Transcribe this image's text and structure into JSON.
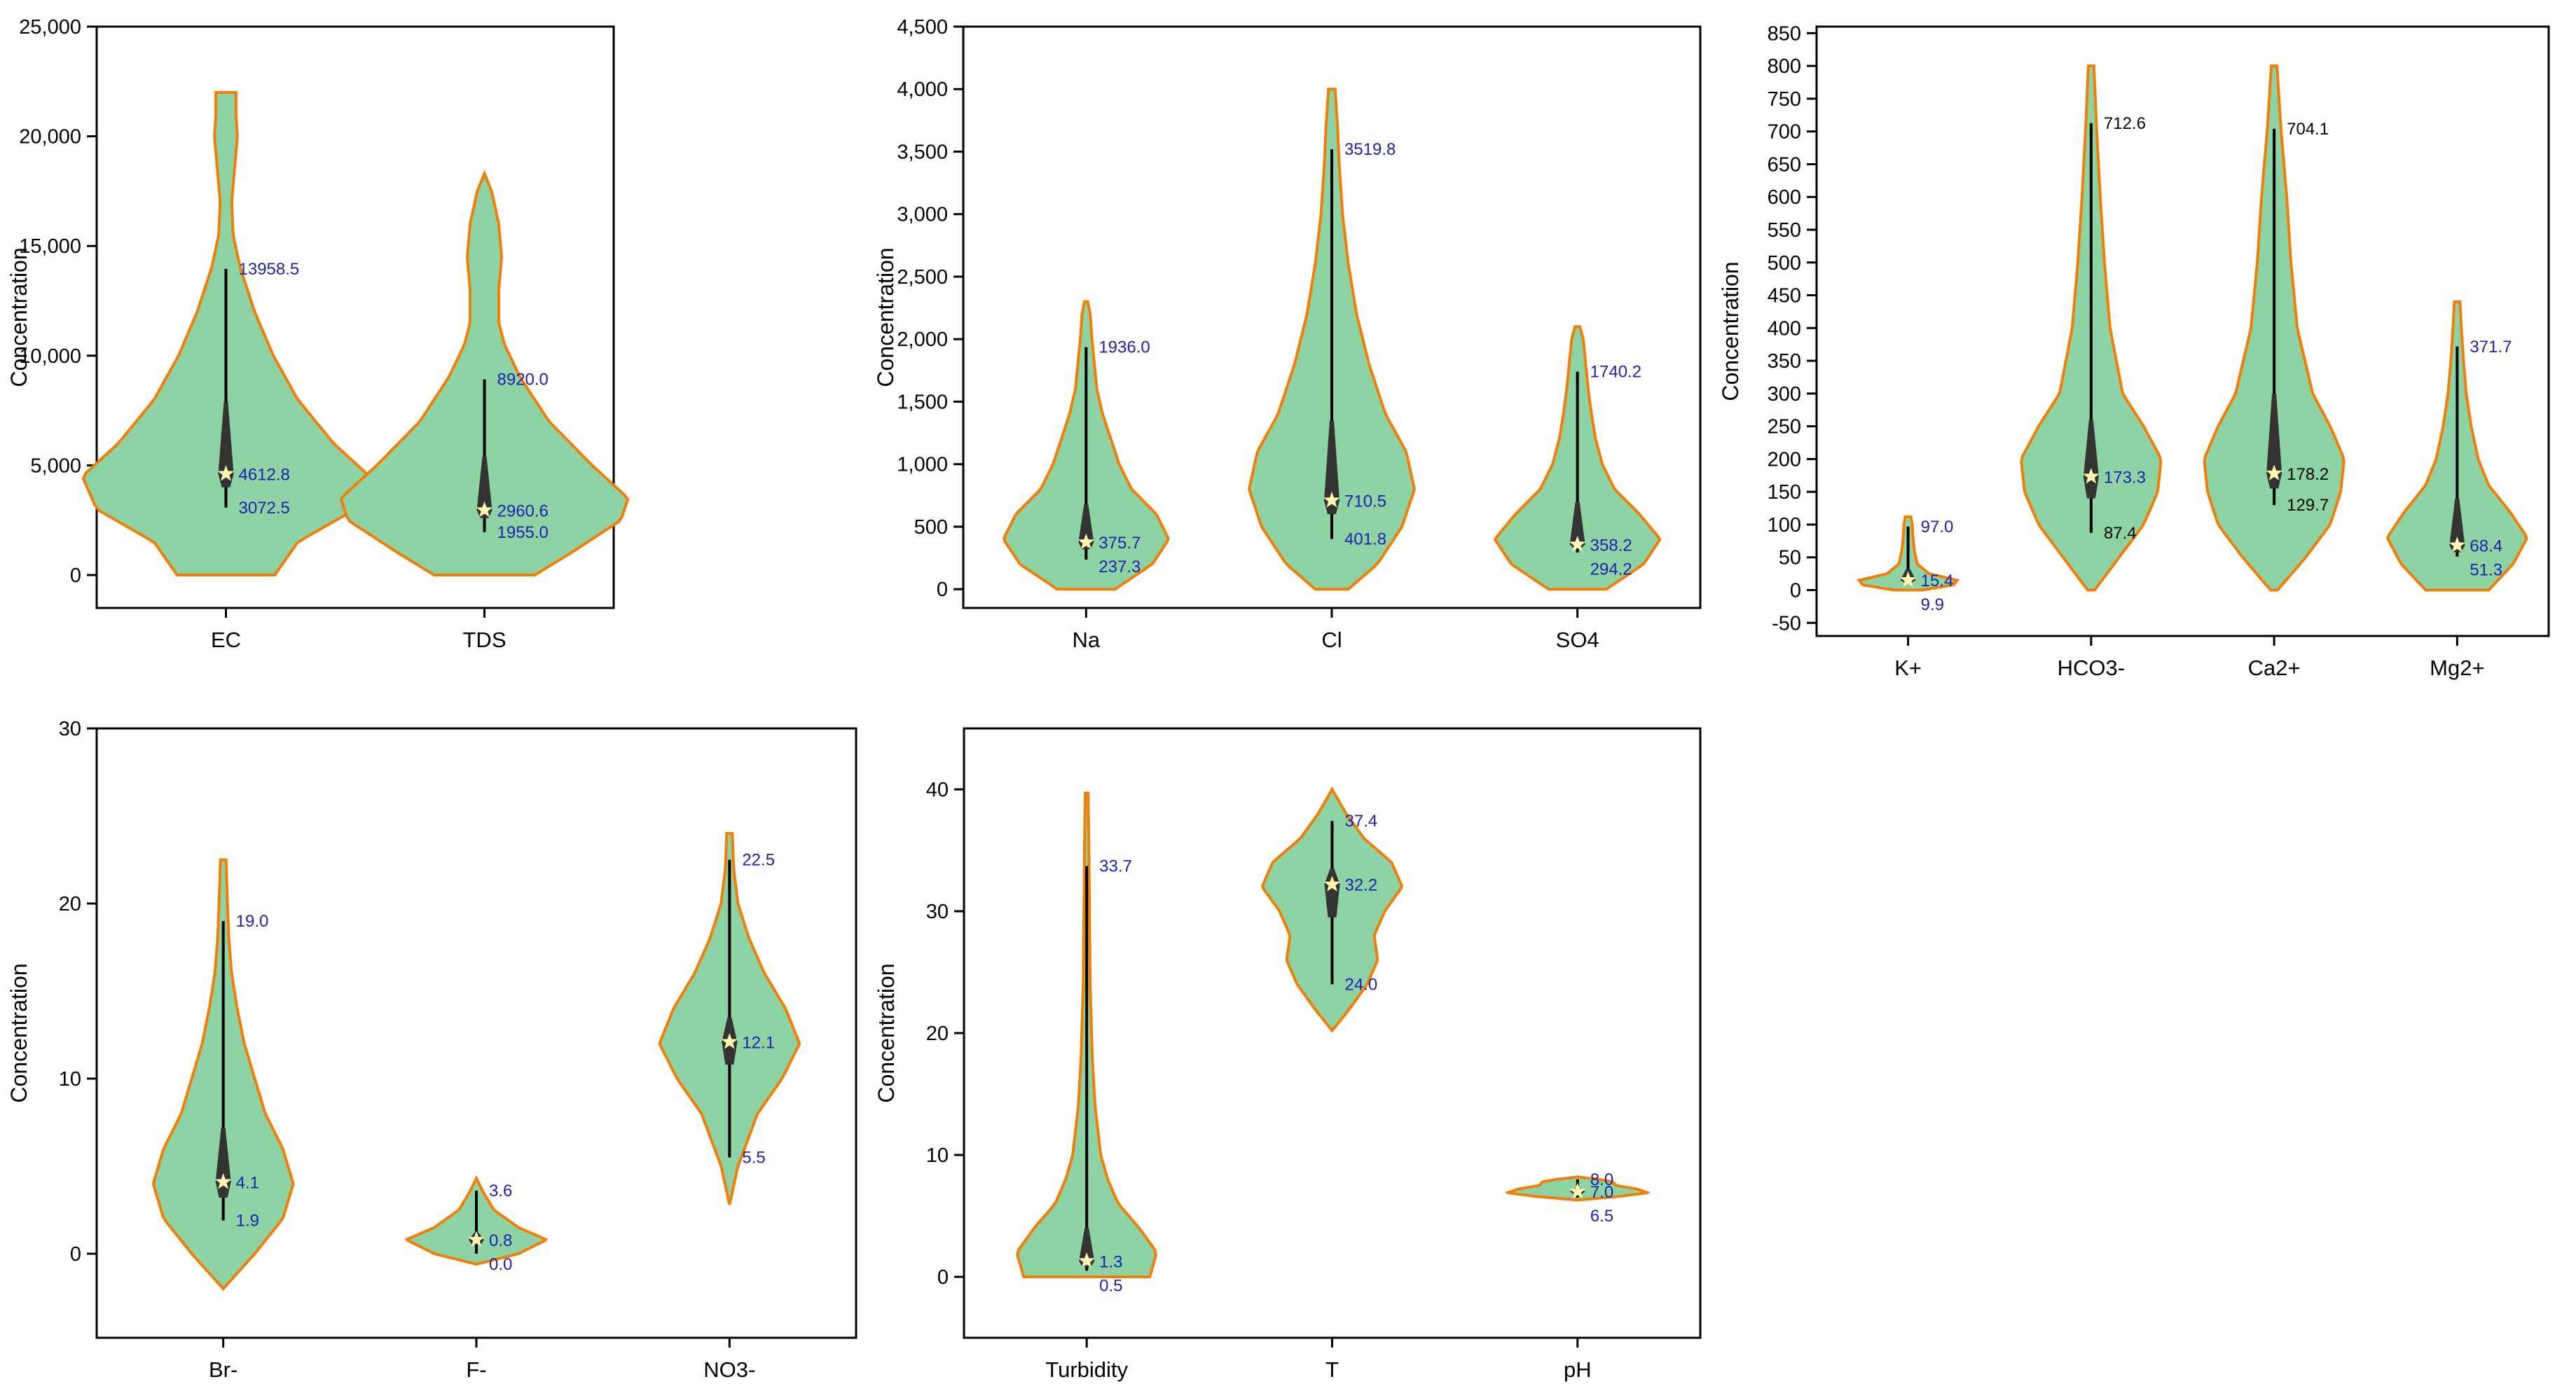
{
  "colors": {
    "violin_fill": "#8dd3a4",
    "violin_stroke": "#f07f0a",
    "box": "#333333",
    "whisker": "#000000",
    "label_blue": "#1f1fb0",
    "label_black": "#000000",
    "star": "#fff6b0"
  },
  "chart_data": [
    {
      "type": "violin",
      "ylabel": "Concentration",
      "ylim": [
        -1500,
        25000
      ],
      "yticks": [
        0,
        5000,
        10000,
        15000,
        20000,
        25000
      ],
      "ytick_labels": [
        "0",
        "5,000",
        "10,000",
        "15,000",
        "20,000",
        "25,000"
      ],
      "categories": [
        "EC",
        "TDS"
      ],
      "series": [
        {
          "name": "EC",
          "min": 3072.5,
          "median": 4612.8,
          "max": 13958.5,
          "q1": 4000,
          "q3": 7900,
          "violin_min": 0,
          "violin_max": 22000,
          "labels": {
            "max": "13958.5",
            "median": "4612.8",
            "min": "3072.5"
          },
          "density": [
            [
              0,
              0.34
            ],
            [
              1500,
              0.5
            ],
            [
              3000,
              0.9
            ],
            [
              4500,
              1.0
            ],
            [
              6000,
              0.75
            ],
            [
              8000,
              0.5
            ],
            [
              10000,
              0.33
            ],
            [
              12000,
              0.2
            ],
            [
              14000,
              0.1
            ],
            [
              15500,
              0.05
            ],
            [
              17000,
              0.04
            ],
            [
              18500,
              0.06
            ],
            [
              20000,
              0.08
            ],
            [
              21000,
              0.07
            ],
            [
              22000,
              0.07
            ]
          ]
        },
        {
          "name": "TDS",
          "min": 1955.0,
          "median": 2960.6,
          "max": 8920.0,
          "q1": 2600,
          "q3": 5400,
          "violin_min": 0,
          "violin_max": 18300,
          "labels": {
            "max": "8920.0",
            "median": "2960.6",
            "min": "1955.0"
          },
          "density": [
            [
              0,
              0.35
            ],
            [
              1000,
              0.6
            ],
            [
              2500,
              0.95
            ],
            [
              3500,
              1.0
            ],
            [
              5000,
              0.75
            ],
            [
              7000,
              0.45
            ],
            [
              9000,
              0.25
            ],
            [
              10500,
              0.14
            ],
            [
              11500,
              0.1
            ],
            [
              13000,
              0.1
            ],
            [
              14500,
              0.12
            ],
            [
              16000,
              0.1
            ],
            [
              17500,
              0.05
            ],
            [
              18300,
              0.0
            ]
          ]
        }
      ]
    },
    {
      "type": "violin",
      "ylabel": "Concentration",
      "ylim": [
        -150,
        4500
      ],
      "yticks": [
        0,
        500,
        1000,
        1500,
        2000,
        2500,
        3000,
        3500,
        4000,
        4500
      ],
      "ytick_labels": [
        "0",
        "500",
        "1,000",
        "1,500",
        "2,000",
        "2,500",
        "3,000",
        "3,500",
        "4,000",
        "4,500"
      ],
      "categories": [
        "Na",
        "Cl",
        "SO4"
      ],
      "series": [
        {
          "name": "Na",
          "min": 237.3,
          "median": 375.7,
          "max": 1936.0,
          "q1": 320,
          "q3": 680,
          "violin_min": 0,
          "violin_max": 2300,
          "labels": {
            "max": "1936.0",
            "median": "375.7",
            "min": "237.3"
          },
          "density": [
            [
              0,
              0.35
            ],
            [
              200,
              0.8
            ],
            [
              400,
              1.0
            ],
            [
              600,
              0.85
            ],
            [
              800,
              0.55
            ],
            [
              1000,
              0.4
            ],
            [
              1200,
              0.3
            ],
            [
              1400,
              0.2
            ],
            [
              1600,
              0.13
            ],
            [
              1800,
              0.1
            ],
            [
              2000,
              0.07
            ],
            [
              2200,
              0.05
            ],
            [
              2300,
              0.02
            ]
          ]
        },
        {
          "name": "Cl",
          "min": 401.8,
          "median": 710.5,
          "max": 3519.8,
          "q1": 600,
          "q3": 1350,
          "violin_min": 0,
          "violin_max": 4000,
          "labels": {
            "max": "3519.8",
            "median": "710.5",
            "min": "401.8"
          },
          "density": [
            [
              0,
              0.2
            ],
            [
              200,
              0.55
            ],
            [
              500,
              0.85
            ],
            [
              800,
              1.0
            ],
            [
              1100,
              0.9
            ],
            [
              1400,
              0.65
            ],
            [
              1800,
              0.45
            ],
            [
              2200,
              0.3
            ],
            [
              2600,
              0.2
            ],
            [
              3000,
              0.13
            ],
            [
              3400,
              0.09
            ],
            [
              3700,
              0.07
            ],
            [
              4000,
              0.04
            ]
          ]
        },
        {
          "name": "SO4",
          "min": 294.2,
          "median": 358.2,
          "max": 1740.2,
          "q1": 330,
          "q3": 700,
          "violin_min": 0,
          "violin_max": 2100,
          "labels": {
            "max": "1740.2",
            "median": "358.2",
            "min": "294.2"
          },
          "density": [
            [
              0,
              0.35
            ],
            [
              200,
              0.8
            ],
            [
              400,
              1.0
            ],
            [
              600,
              0.75
            ],
            [
              800,
              0.45
            ],
            [
              1000,
              0.3
            ],
            [
              1200,
              0.22
            ],
            [
              1400,
              0.17
            ],
            [
              1600,
              0.13
            ],
            [
              1800,
              0.1
            ],
            [
              2000,
              0.07
            ],
            [
              2100,
              0.03
            ]
          ]
        }
      ]
    },
    {
      "type": "violin",
      "ylabel": "Concentration",
      "ylim": [
        -70,
        860
      ],
      "yticks": [
        -50,
        0,
        50,
        100,
        150,
        200,
        250,
        300,
        350,
        400,
        450,
        500,
        550,
        600,
        650,
        700,
        750,
        800,
        850
      ],
      "ytick_labels": [
        "-50",
        "0",
        "50",
        "100",
        "150",
        "200",
        "250",
        "300",
        "350",
        "400",
        "450",
        "500",
        "550",
        "600",
        "650",
        "700",
        "750",
        "800",
        "850"
      ],
      "categories": [
        "K+",
        "HCO3-",
        "Ca2+",
        "Mg2+"
      ],
      "series": [
        {
          "name": "K+",
          "min": 9.9,
          "median": 15.4,
          "max": 97.0,
          "q1": 12,
          "q3": 32,
          "violin_min": 0,
          "violin_max": 112,
          "labels": {
            "max": "97.0",
            "median": "15.4",
            "min": "9.9"
          },
          "density": [
            [
              0,
              0.2
            ],
            [
              8,
              0.65
            ],
            [
              15,
              0.7
            ],
            [
              25,
              0.3
            ],
            [
              40,
              0.13
            ],
            [
              60,
              0.09
            ],
            [
              80,
              0.07
            ],
            [
              100,
              0.06
            ],
            [
              112,
              0.04
            ]
          ]
        },
        {
          "name": "HCO3-",
          "min": 87.4,
          "median": 173.3,
          "max": 712.6,
          "q1": 140,
          "q3": 260,
          "violin_min": 0,
          "violin_max": 800,
          "labels": {
            "max": "712.6",
            "median": "173.3",
            "min": "87.4"
          },
          "density": [
            [
              0,
              0.05
            ],
            [
              50,
              0.4
            ],
            [
              100,
              0.75
            ],
            [
              150,
              0.95
            ],
            [
              200,
              1.0
            ],
            [
              250,
              0.75
            ],
            [
              300,
              0.45
            ],
            [
              400,
              0.27
            ],
            [
              500,
              0.19
            ],
            [
              600,
              0.13
            ],
            [
              700,
              0.08
            ],
            [
              800,
              0.04
            ]
          ]
        },
        {
          "name": "Ca2+",
          "min": 129.7,
          "median": 178.2,
          "max": 704.1,
          "q1": 155,
          "q3": 300,
          "violin_min": 0,
          "violin_max": 800,
          "labels": {
            "max": "704.1",
            "median": "178.2",
            "min": "129.7"
          },
          "density": [
            [
              0,
              0.05
            ],
            [
              50,
              0.45
            ],
            [
              100,
              0.8
            ],
            [
              150,
              0.95
            ],
            [
              200,
              1.0
            ],
            [
              250,
              0.8
            ],
            [
              300,
              0.55
            ],
            [
              400,
              0.33
            ],
            [
              500,
              0.24
            ],
            [
              600,
              0.18
            ],
            [
              700,
              0.1
            ],
            [
              800,
              0.04
            ]
          ]
        },
        {
          "name": "Mg2+",
          "min": 51.3,
          "median": 68.4,
          "max": 371.7,
          "q1": 58,
          "q3": 140,
          "violin_min": 0,
          "violin_max": 440,
          "labels": {
            "max": "371.7",
            "median": "68.4",
            "min": "51.3"
          },
          "density": [
            [
              0,
              0.45
            ],
            [
              40,
              0.8
            ],
            [
              80,
              1.0
            ],
            [
              120,
              0.75
            ],
            [
              160,
              0.45
            ],
            [
              200,
              0.3
            ],
            [
              250,
              0.2
            ],
            [
              300,
              0.13
            ],
            [
              350,
              0.09
            ],
            [
              400,
              0.06
            ],
            [
              440,
              0.04
            ]
          ]
        }
      ]
    },
    {
      "type": "violin",
      "ylabel": "Concentration",
      "ylim": [
        -4.8,
        30
      ],
      "yticks": [
        0,
        10,
        20,
        30
      ],
      "ytick_labels": [
        "0",
        "10",
        "20",
        "30"
      ],
      "categories": [
        "Br-",
        "F-",
        "NO3-"
      ],
      "series": [
        {
          "name": "Br-",
          "min": 1.9,
          "median": 4.1,
          "max": 19.0,
          "q1": 3.2,
          "q3": 7.2,
          "violin_min": -2,
          "violin_max": 22.5,
          "labels": {
            "max": "19.0",
            "median": "4.1",
            "min": "1.9"
          },
          "density": [
            [
              -2,
              0.0
            ],
            [
              0,
              0.45
            ],
            [
              2,
              0.85
            ],
            [
              4,
              1.0
            ],
            [
              6,
              0.85
            ],
            [
              8,
              0.6
            ],
            [
              10,
              0.45
            ],
            [
              12,
              0.3
            ],
            [
              14,
              0.2
            ],
            [
              16,
              0.12
            ],
            [
              18,
              0.08
            ],
            [
              20,
              0.06
            ],
            [
              22.5,
              0.04
            ]
          ]
        },
        {
          "name": "F-",
          "min": 0.0,
          "median": 0.8,
          "max": 3.6,
          "q1": 0.5,
          "q3": 1.2,
          "violin_min": -0.6,
          "violin_max": 4.3,
          "labels": {
            "max": "3.6",
            "median": "0.8",
            "min": "0.0"
          },
          "density": [
            [
              -0.6,
              0.0
            ],
            [
              0,
              0.6
            ],
            [
              0.8,
              1.0
            ],
            [
              1.5,
              0.6
            ],
            [
              2.5,
              0.25
            ],
            [
              3.5,
              0.1
            ],
            [
              4.3,
              0.0
            ]
          ]
        },
        {
          "name": "NO3-",
          "min": 5.5,
          "median": 12.1,
          "max": 22.5,
          "q1": 10.8,
          "q3": 13.5,
          "violin_min": 2.8,
          "violin_max": 24,
          "labels": {
            "max": "22.5",
            "median": "12.1",
            "min": "5.5"
          },
          "density": [
            [
              2.8,
              0.0
            ],
            [
              5,
              0.12
            ],
            [
              8,
              0.4
            ],
            [
              10,
              0.75
            ],
            [
              12,
              1.0
            ],
            [
              14,
              0.8
            ],
            [
              16,
              0.5
            ],
            [
              18,
              0.28
            ],
            [
              20,
              0.12
            ],
            [
              22,
              0.06
            ],
            [
              24,
              0.04
            ]
          ]
        }
      ]
    },
    {
      "type": "violin",
      "ylabel": "Concentration",
      "ylim": [
        -5,
        45
      ],
      "yticks": [
        0,
        10,
        20,
        30,
        40
      ],
      "ytick_labels": [
        "0",
        "10",
        "20",
        "30",
        "40"
      ],
      "categories": [
        "Turbidity",
        "T",
        "pH"
      ],
      "series": [
        {
          "name": "Turbidity",
          "min": 0.5,
          "median": 1.3,
          "max": 33.7,
          "q1": 0.8,
          "q3": 4.0,
          "violin_min": 0,
          "violin_max": 39.7,
          "labels": {
            "max": "33.7",
            "median": "1.3",
            "min": "0.5"
          },
          "density": [
            [
              0,
              0.9
            ],
            [
              2,
              1.0
            ],
            [
              4,
              0.75
            ],
            [
              6,
              0.45
            ],
            [
              8,
              0.3
            ],
            [
              10,
              0.2
            ],
            [
              14,
              0.12
            ],
            [
              18,
              0.08
            ],
            [
              24,
              0.05
            ],
            [
              30,
              0.04
            ],
            [
              36,
              0.03
            ],
            [
              39.7,
              0.02
            ]
          ]
        },
        {
          "name": "T",
          "min": 24.0,
          "median": 32.2,
          "max": 37.4,
          "q1": 29.5,
          "q3": 33.5,
          "violin_min": 20.2,
          "violin_max": 40,
          "labels": {
            "max": "37.4",
            "median": "32.2",
            "min": "24.0"
          },
          "density": [
            [
              20.2,
              0.0
            ],
            [
              22,
              0.25
            ],
            [
              24,
              0.5
            ],
            [
              26,
              0.65
            ],
            [
              28,
              0.6
            ],
            [
              30,
              0.75
            ],
            [
              32,
              1.0
            ],
            [
              34,
              0.85
            ],
            [
              36,
              0.45
            ],
            [
              38,
              0.2
            ],
            [
              40,
              0.0
            ]
          ]
        },
        {
          "name": "pH",
          "min": 6.5,
          "median": 7.0,
          "max": 8.0,
          "q1": 6.8,
          "q3": 7.3,
          "violin_min": 6.3,
          "violin_max": 8.2,
          "labels": {
            "max": "8.0",
            "median": "7.0",
            "min": "6.5"
          },
          "density": [
            [
              6.3,
              0.0
            ],
            [
              6.6,
              0.6
            ],
            [
              6.9,
              1.0
            ],
            [
              7.2,
              0.85
            ],
            [
              7.5,
              0.55
            ],
            [
              7.8,
              0.5
            ],
            [
              8.0,
              0.3
            ],
            [
              8.2,
              0.0
            ]
          ]
        }
      ]
    }
  ]
}
